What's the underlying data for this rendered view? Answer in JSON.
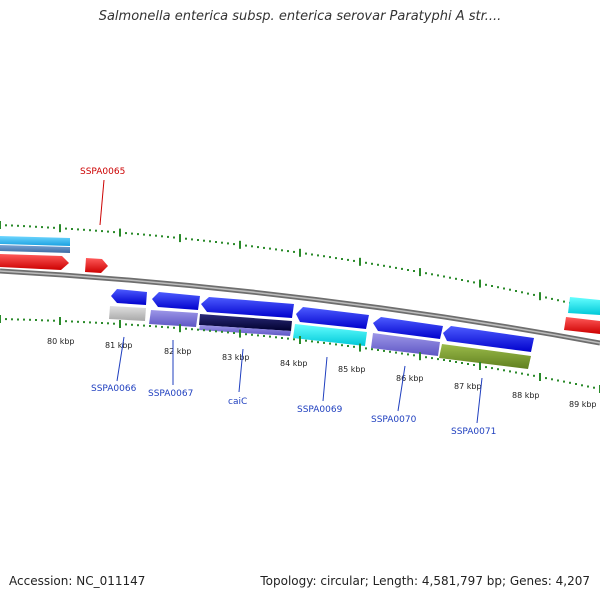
{
  "title": "Salmonella enterica subsp. enterica serovar Paratyphi A str....",
  "footer": {
    "accession": "Accession: NC_011147",
    "summary": "Topology: circular; Length: 4,581,797 bp; Genes: 4,207"
  },
  "colors": {
    "backbone": "#888888",
    "tick": "#2a8a2a",
    "label_blue": "#1f3fbf",
    "label_red": "#cc0000"
  },
  "ticks": {
    "unit": "kbp",
    "labels": [
      "80 kbp",
      "81 kbp",
      "82 kbp",
      "83 kbp",
      "84 kbp",
      "85 kbp",
      "86 kbp",
      "87 kbp",
      "88 kbp",
      "89 kbp"
    ]
  },
  "gene_labels": [
    {
      "text": "SSPA0065",
      "color": "#cc0000"
    },
    {
      "text": "SSPA0066",
      "color": "#1f3fbf"
    },
    {
      "text": "SSPA0067",
      "color": "#1f3fbf"
    },
    {
      "text": "caiC",
      "color": "#1f3fbf"
    },
    {
      "text": "SSPA0069",
      "color": "#1f3fbf"
    },
    {
      "text": "SSPA0070",
      "color": "#1f3fbf"
    },
    {
      "text": "SSPA0071",
      "color": "#1f3fbf"
    }
  ]
}
